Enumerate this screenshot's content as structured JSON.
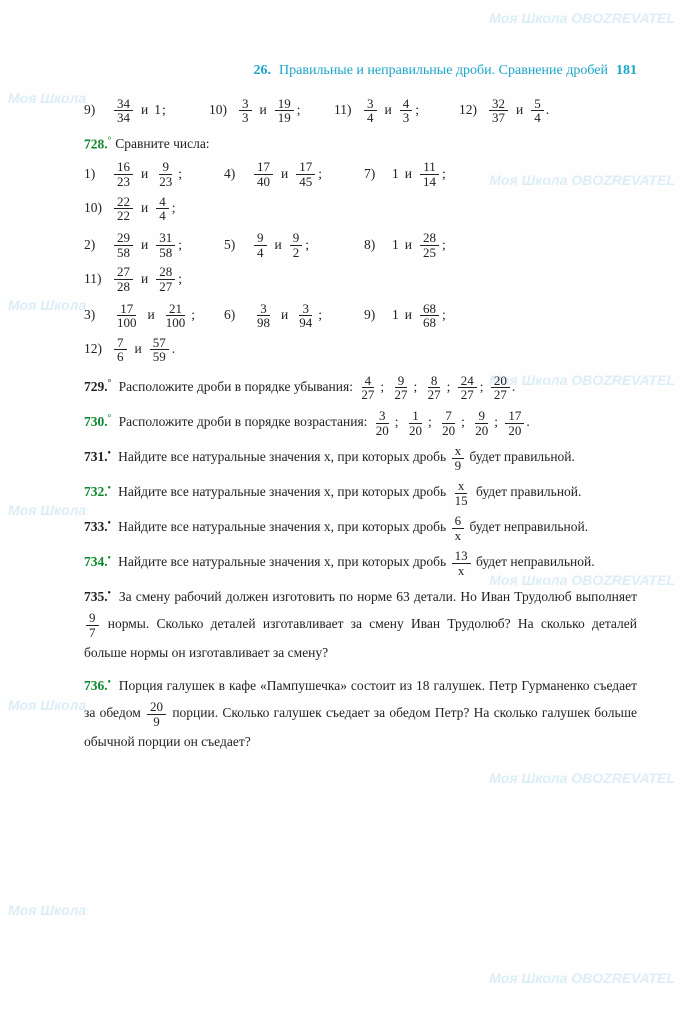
{
  "header": {
    "section_num": "26.",
    "section_title": "Правильные и неправильные дроби. Сравнение дробей",
    "page_num": "181"
  },
  "watermarks": {
    "brand_a": "Моя Школа",
    "brand_b": "OBOZREVATEL"
  },
  "words": {
    "and": "и",
    "one": "1"
  },
  "p727_tail": {
    "items": [
      {
        "n": "9)",
        "a": {
          "n": "34",
          "d": "34"
        },
        "b_plain": "1"
      },
      {
        "n": "10)",
        "a": {
          "n": "3",
          "d": "3"
        },
        "b": {
          "n": "19",
          "d": "19"
        }
      },
      {
        "n": "11)",
        "a": {
          "n": "3",
          "d": "4"
        },
        "b": {
          "n": "4",
          "d": "3"
        }
      },
      {
        "n": "12)",
        "a": {
          "n": "32",
          "d": "37"
        },
        "b": {
          "n": "5",
          "d": "4"
        }
      }
    ]
  },
  "p728": {
    "num": "728.",
    "deg": "°",
    "prompt": "Сравните числа:",
    "rows": [
      [
        {
          "n": "1)",
          "a": {
            "n": "16",
            "d": "23"
          },
          "b": {
            "n": "9",
            "d": "23"
          }
        },
        {
          "n": "4)",
          "a": {
            "n": "17",
            "d": "40"
          },
          "b": {
            "n": "17",
            "d": "45"
          }
        },
        {
          "n": "7)",
          "plain_a": "1",
          "b": {
            "n": "11",
            "d": "14"
          }
        },
        {
          "n": "10)",
          "a": {
            "n": "22",
            "d": "22"
          },
          "b": {
            "n": "4",
            "d": "4"
          }
        }
      ],
      [
        {
          "n": "2)",
          "a": {
            "n": "29",
            "d": "58"
          },
          "b": {
            "n": "31",
            "d": "58"
          }
        },
        {
          "n": "5)",
          "a": {
            "n": "9",
            "d": "4"
          },
          "b": {
            "n": "9",
            "d": "2"
          }
        },
        {
          "n": "8)",
          "plain_a": "1",
          "b": {
            "n": "28",
            "d": "25"
          }
        },
        {
          "n": "11)",
          "a": {
            "n": "27",
            "d": "28"
          },
          "b": {
            "n": "28",
            "d": "27"
          }
        }
      ],
      [
        {
          "n": "3)",
          "a": {
            "n": "17",
            "d": "100"
          },
          "b": {
            "n": "21",
            "d": "100"
          }
        },
        {
          "n": "6)",
          "a": {
            "n": "3",
            "d": "98"
          },
          "b": {
            "n": "3",
            "d": "94"
          }
        },
        {
          "n": "9)",
          "plain_a": "1",
          "b": {
            "n": "68",
            "d": "68"
          }
        },
        {
          "n": "12)",
          "a": {
            "n": "7",
            "d": "6"
          },
          "b": {
            "n": "57",
            "d": "59"
          }
        }
      ]
    ]
  },
  "p729": {
    "num": "729.",
    "deg": "°",
    "text": "Расположите дроби в порядке убывания:",
    "fracs": [
      {
        "n": "4",
        "d": "27"
      },
      {
        "n": "9",
        "d": "27"
      },
      {
        "n": "8",
        "d": "27"
      },
      {
        "n": "24",
        "d": "27"
      },
      {
        "n": "20",
        "d": "27"
      }
    ]
  },
  "p730": {
    "num": "730.",
    "deg": "°",
    "text": "Расположите дроби в порядке возрастания:",
    "fracs": [
      {
        "n": "3",
        "d": "20"
      },
      {
        "n": "1",
        "d": "20"
      },
      {
        "n": "7",
        "d": "20"
      },
      {
        "n": "9",
        "d": "20"
      },
      {
        "n": "17",
        "d": "20"
      }
    ]
  },
  "p731": {
    "num": "731.",
    "deg": "•",
    "text": "Найдите все натуральные значения x, при которых дробь",
    "frac": {
      "n": "x",
      "d": "9"
    },
    "tail": "будет правильной."
  },
  "p732": {
    "num": "732.",
    "deg": "•",
    "text": "Найдите все натуральные значения x, при которых дробь",
    "frac": {
      "n": "x",
      "d": "15"
    },
    "tail": "будет правильной."
  },
  "p733": {
    "num": "733.",
    "deg": "•",
    "text": "Найдите все натуральные значения x, при которых дробь",
    "frac": {
      "n": "6",
      "d": "x"
    },
    "tail": "будет неправильной."
  },
  "p734": {
    "num": "734.",
    "deg": "•",
    "text": "Найдите все натуральные значения x, при которых дробь",
    "frac": {
      "n": "13",
      "d": "x"
    },
    "tail": "будет неправильной."
  },
  "p735": {
    "num": "735.",
    "deg": "•",
    "t1": "За смену рабочий должен изготовить по норме 63 детали. Но Иван Трудолюб выполняет",
    "frac": {
      "n": "9",
      "d": "7"
    },
    "t2": "нормы. Сколько деталей изготавливает за смену Иван Трудолюб? На сколько деталей больше нормы он изготавливает за смену?"
  },
  "p736": {
    "num": "736.",
    "deg": "•",
    "t1": "Порция галушек в кафе «Пампушечка» состоит из 18 галушек. Петр Гурманенко съедает за обедом",
    "frac": {
      "n": "20",
      "d": "9"
    },
    "t2": "порции. Сколько галушек съедает за обедом Петр? На сколько галушек больше обычной порции он съедает?"
  }
}
